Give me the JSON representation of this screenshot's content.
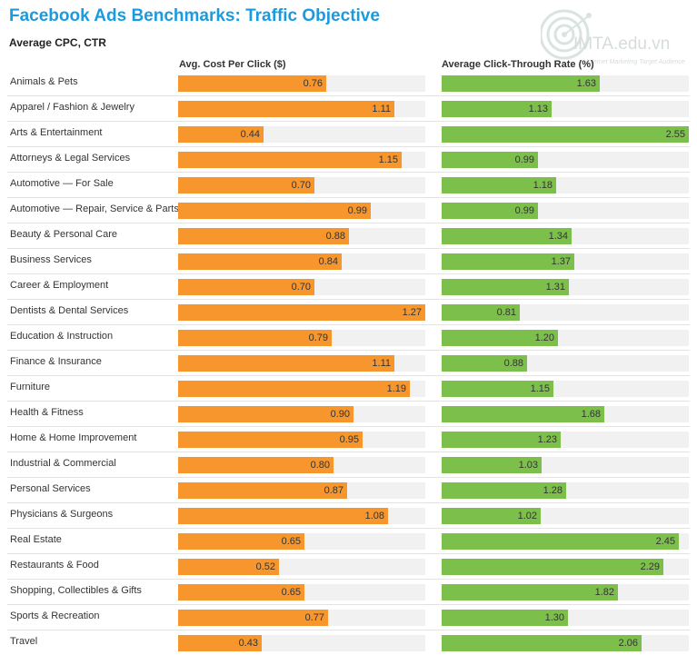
{
  "header": {
    "title": "Facebook Ads Benchmarks: Traffic Objective",
    "subtitle": "Average CPC, CTR"
  },
  "watermark": {
    "text": "IMTA.edu.vn",
    "tagline": "Internet Marketing Target Audience"
  },
  "colors": {
    "title": "#1a9be0",
    "cpc_bar": "#f7962d",
    "ctr_bar": "#7cc04b",
    "track": "#f1f1f1"
  },
  "chart_data": {
    "type": "bar",
    "orientation": "horizontal",
    "title": "Facebook Ads Benchmarks: Traffic Objective",
    "subtitle": "Average CPC, CTR",
    "categories": [
      "Animals & Pets",
      "Apparel / Fashion & Jewelry",
      "Arts & Entertainment",
      "Attorneys & Legal Services",
      "Automotive — For Sale",
      "Automotive — Repair, Service & Parts",
      "Beauty & Personal Care",
      "Business Services",
      "Career & Employment",
      "Dentists & Dental Services",
      "Education & Instruction",
      "Finance & Insurance",
      "Furniture",
      "Health & Fitness",
      "Home & Home Improvement",
      "Industrial & Commercial",
      "Personal Services",
      "Physicians & Surgeons",
      "Real Estate",
      "Restaurants & Food",
      "Shopping, Collectibles & Gifts",
      "Sports & Recreation",
      "Travel"
    ],
    "series": [
      {
        "name": "Avg. Cost Per Click ($)",
        "key": "cpc",
        "max": 1.27,
        "values": [
          0.76,
          1.11,
          0.44,
          1.15,
          0.7,
          0.99,
          0.88,
          0.84,
          0.7,
          1.27,
          0.79,
          1.11,
          1.19,
          0.9,
          0.95,
          0.8,
          0.87,
          1.08,
          0.65,
          0.52,
          0.65,
          0.77,
          0.43
        ]
      },
      {
        "name": "Average Click-Through Rate (%)",
        "key": "ctr",
        "max": 2.55,
        "values": [
          1.63,
          1.13,
          2.55,
          0.99,
          1.18,
          0.99,
          1.34,
          1.37,
          1.31,
          0.81,
          1.2,
          0.88,
          1.15,
          1.68,
          1.23,
          1.03,
          1.28,
          1.02,
          2.45,
          2.29,
          1.82,
          1.3,
          2.06
        ]
      }
    ]
  }
}
